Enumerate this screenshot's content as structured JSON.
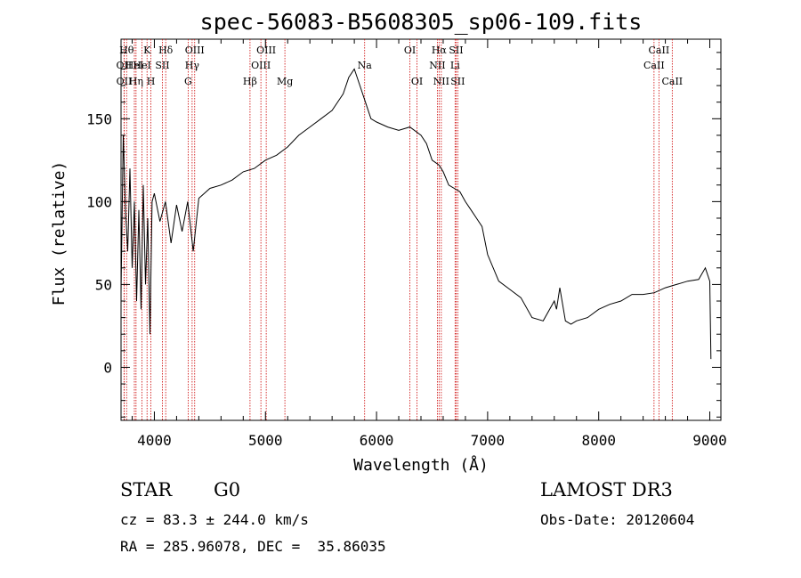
{
  "chart_data": {
    "type": "line",
    "title": "spec-56083-B5608305_sp06-109.fits",
    "xlabel": "Wavelength (Å)",
    "ylabel": "Flux (relative)",
    "xlim": [
      3700,
      9100
    ],
    "ylim": [
      -32,
      198
    ],
    "x_ticks": [
      4000,
      5000,
      6000,
      7000,
      8000,
      9000
    ],
    "y_ticks": [
      0,
      50,
      100,
      150
    ],
    "grid": false,
    "line_color": "#000000",
    "marker_color": "#cc0000",
    "series": [
      {
        "name": "flux",
        "x": [
          3700,
          3720,
          3740,
          3760,
          3780,
          3800,
          3820,
          3840,
          3860,
          3880,
          3900,
          3920,
          3940,
          3960,
          3980,
          4000,
          4050,
          4100,
          4150,
          4200,
          4250,
          4300,
          4350,
          4400,
          4450,
          4500,
          4600,
          4700,
          4800,
          4900,
          5000,
          5100,
          5200,
          5300,
          5400,
          5500,
          5600,
          5700,
          5750,
          5800,
          5850,
          5900,
          5950,
          6000,
          6100,
          6200,
          6300,
          6400,
          6450,
          6500,
          6563,
          6600,
          6650,
          6700,
          6750,
          6800,
          6850,
          6900,
          6950,
          7000,
          7100,
          7200,
          7300,
          7400,
          7500,
          7600,
          7620,
          7650,
          7700,
          7750,
          7800,
          7900,
          8000,
          8100,
          8200,
          8300,
          8400,
          8500,
          8600,
          8700,
          8800,
          8900,
          8960,
          9000,
          9010
        ],
        "y": [
          45,
          140,
          95,
          70,
          120,
          60,
          100,
          40,
          95,
          35,
          110,
          50,
          90,
          20,
          100,
          105,
          88,
          100,
          75,
          98,
          82,
          100,
          70,
          102,
          105,
          108,
          110,
          113,
          118,
          120,
          125,
          128,
          133,
          140,
          145,
          150,
          155,
          165,
          175,
          180,
          170,
          160,
          150,
          148,
          145,
          143,
          145,
          140,
          135,
          125,
          122,
          118,
          110,
          108,
          106,
          100,
          95,
          90,
          85,
          68,
          52,
          47,
          42,
          30,
          28,
          40,
          35,
          48,
          28,
          26,
          28,
          30,
          35,
          38,
          40,
          44,
          44,
          45,
          48,
          50,
          52,
          53,
          60,
          52,
          5
        ]
      }
    ],
    "lines": [
      {
        "wavelength": 3750,
        "label": "Hθ",
        "row": 0
      },
      {
        "wavelength": 3727,
        "label": "OII",
        "row": 1
      },
      {
        "wavelength": 3728,
        "label": "OII",
        "row": 2
      },
      {
        "wavelength": 3820,
        "label": "HeI",
        "row": 1
      },
      {
        "wavelength": 3835,
        "label": "Hη",
        "row": 2
      },
      {
        "wavelength": 3934,
        "label": "K",
        "row": 0
      },
      {
        "wavelength": 3889,
        "label": "HeI",
        "row": 1
      },
      {
        "wavelength": 3969,
        "label": "H",
        "row": 2
      },
      {
        "wavelength": 4102,
        "label": "Hδ",
        "row": 0
      },
      {
        "wavelength": 4072,
        "label": "SII",
        "row": 1
      },
      {
        "wavelength": 4363,
        "label": "OIII",
        "row": 0
      },
      {
        "wavelength": 4340,
        "label": "Hγ",
        "row": 1
      },
      {
        "wavelength": 4304,
        "label": "G",
        "row": 2
      },
      {
        "wavelength": 4861,
        "label": "Hβ",
        "row": 2
      },
      {
        "wavelength": 4959,
        "label": "OIII",
        "row": 1
      },
      {
        "wavelength": 5007,
        "label": "OIII",
        "row": 0
      },
      {
        "wavelength": 5175,
        "label": "Mg",
        "row": 2
      },
      {
        "wavelength": 5893,
        "label": "Na",
        "row": 1
      },
      {
        "wavelength": 6300,
        "label": "OI",
        "row": 0
      },
      {
        "wavelength": 6364,
        "label": "OI",
        "row": 2
      },
      {
        "wavelength": 6548,
        "label": "NII",
        "row": 1
      },
      {
        "wavelength": 6563,
        "label": "Hα",
        "row": 0
      },
      {
        "wavelength": 6583,
        "label": "NII",
        "row": 2
      },
      {
        "wavelength": 6707,
        "label": "Li",
        "row": 1
      },
      {
        "wavelength": 6716,
        "label": "SII",
        "row": 0
      },
      {
        "wavelength": 6731,
        "label": "SII",
        "row": 2
      },
      {
        "wavelength": 8498,
        "label": "CaII",
        "row": 1
      },
      {
        "wavelength": 8542,
        "label": "CaII",
        "row": 0
      },
      {
        "wavelength": 8662,
        "label": "CaII",
        "row": 2
      }
    ]
  },
  "info": {
    "object_class": "STAR",
    "subclass": "G0",
    "survey": "LAMOST DR3",
    "cz": "cz = 83.3 ± 244.0 km/s",
    "obs_date": "Obs-Date: 20120604",
    "coords": "RA = 285.96078, DEC =  35.86035"
  }
}
